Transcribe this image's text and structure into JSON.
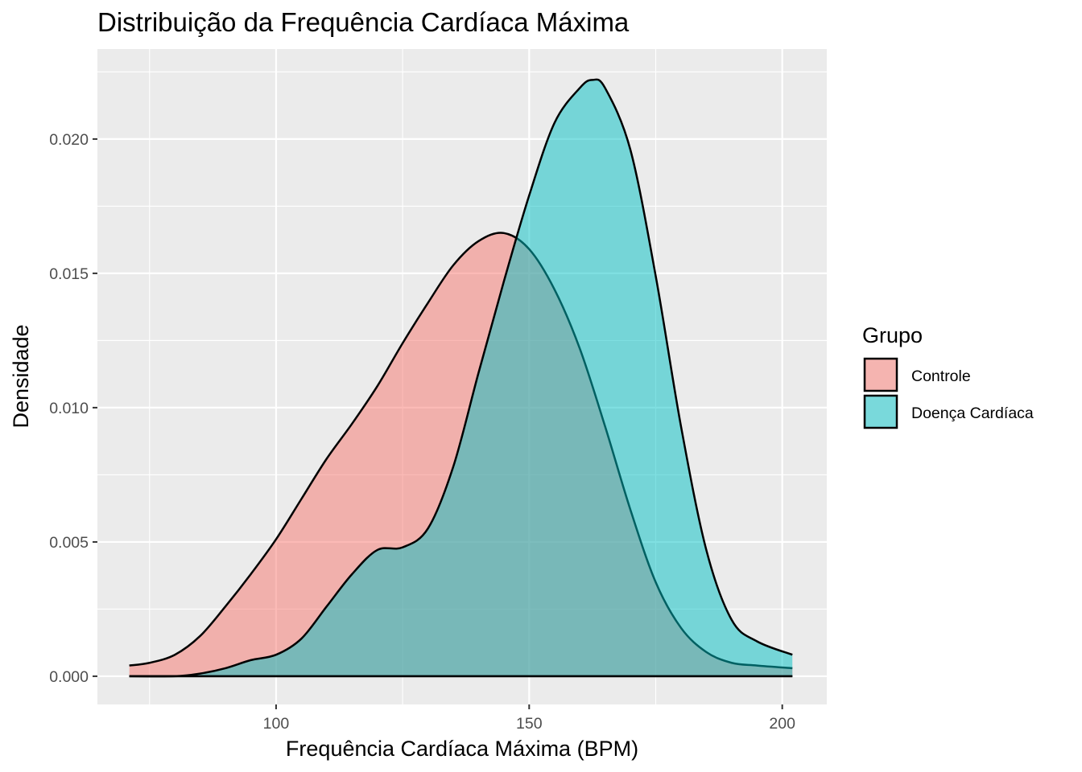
{
  "chart_data": {
    "type": "area",
    "title": "Distribuição da Frequência Cardíaca Máxima",
    "xlabel": "Frequência Cardíaca Máxima (BPM)",
    "ylabel": "Densidade",
    "xlim": [
      64.7,
      208.8
    ],
    "ylim": [
      -0.00105,
      0.02335
    ],
    "x_ticks": [
      100,
      150,
      200
    ],
    "x_tick_labels": [
      "100",
      "150",
      "200"
    ],
    "y_ticks": [
      0.0,
      0.005,
      0.01,
      0.015,
      0.02
    ],
    "y_tick_labels": [
      "0.000",
      "0.005",
      "0.010",
      "0.015",
      "0.020"
    ],
    "grid": true,
    "legend": {
      "title": "Grupo",
      "position": "right"
    },
    "series": [
      {
        "name": "Controle",
        "color": "#F8766D",
        "x": [
          71,
          75,
          80,
          85,
          90,
          95,
          100,
          105,
          110,
          115,
          120,
          125,
          130,
          135,
          140,
          145,
          150,
          155,
          160,
          165,
          170,
          175,
          180,
          185,
          190,
          195,
          202
        ],
        "values": [
          0.0004,
          0.0005,
          0.0008,
          0.0015,
          0.0026,
          0.0038,
          0.0051,
          0.0066,
          0.0081,
          0.0094,
          0.0108,
          0.0124,
          0.0139,
          0.0153,
          0.0162,
          0.0165,
          0.0159,
          0.0144,
          0.0122,
          0.0093,
          0.0062,
          0.0035,
          0.0018,
          0.0009,
          0.0005,
          0.0004,
          0.0003
        ]
      },
      {
        "name": "Doença Cardíaca",
        "color": "#00BFC4",
        "x": [
          71,
          80,
          85,
          90,
          95,
          100,
          105,
          110,
          115,
          120,
          125,
          130,
          135,
          140,
          145,
          150,
          155,
          160,
          162.5,
          165,
          170,
          175,
          180,
          185,
          190,
          195,
          202
        ],
        "values": [
          0.0,
          0.0,
          0.0001,
          0.0003,
          0.0006,
          0.0008,
          0.0014,
          0.0026,
          0.0038,
          0.0047,
          0.0048,
          0.0055,
          0.0078,
          0.0113,
          0.0147,
          0.0179,
          0.0206,
          0.0219,
          0.0222,
          0.0219,
          0.0196,
          0.0149,
          0.0093,
          0.0047,
          0.0021,
          0.0013,
          0.0008
        ]
      }
    ]
  }
}
